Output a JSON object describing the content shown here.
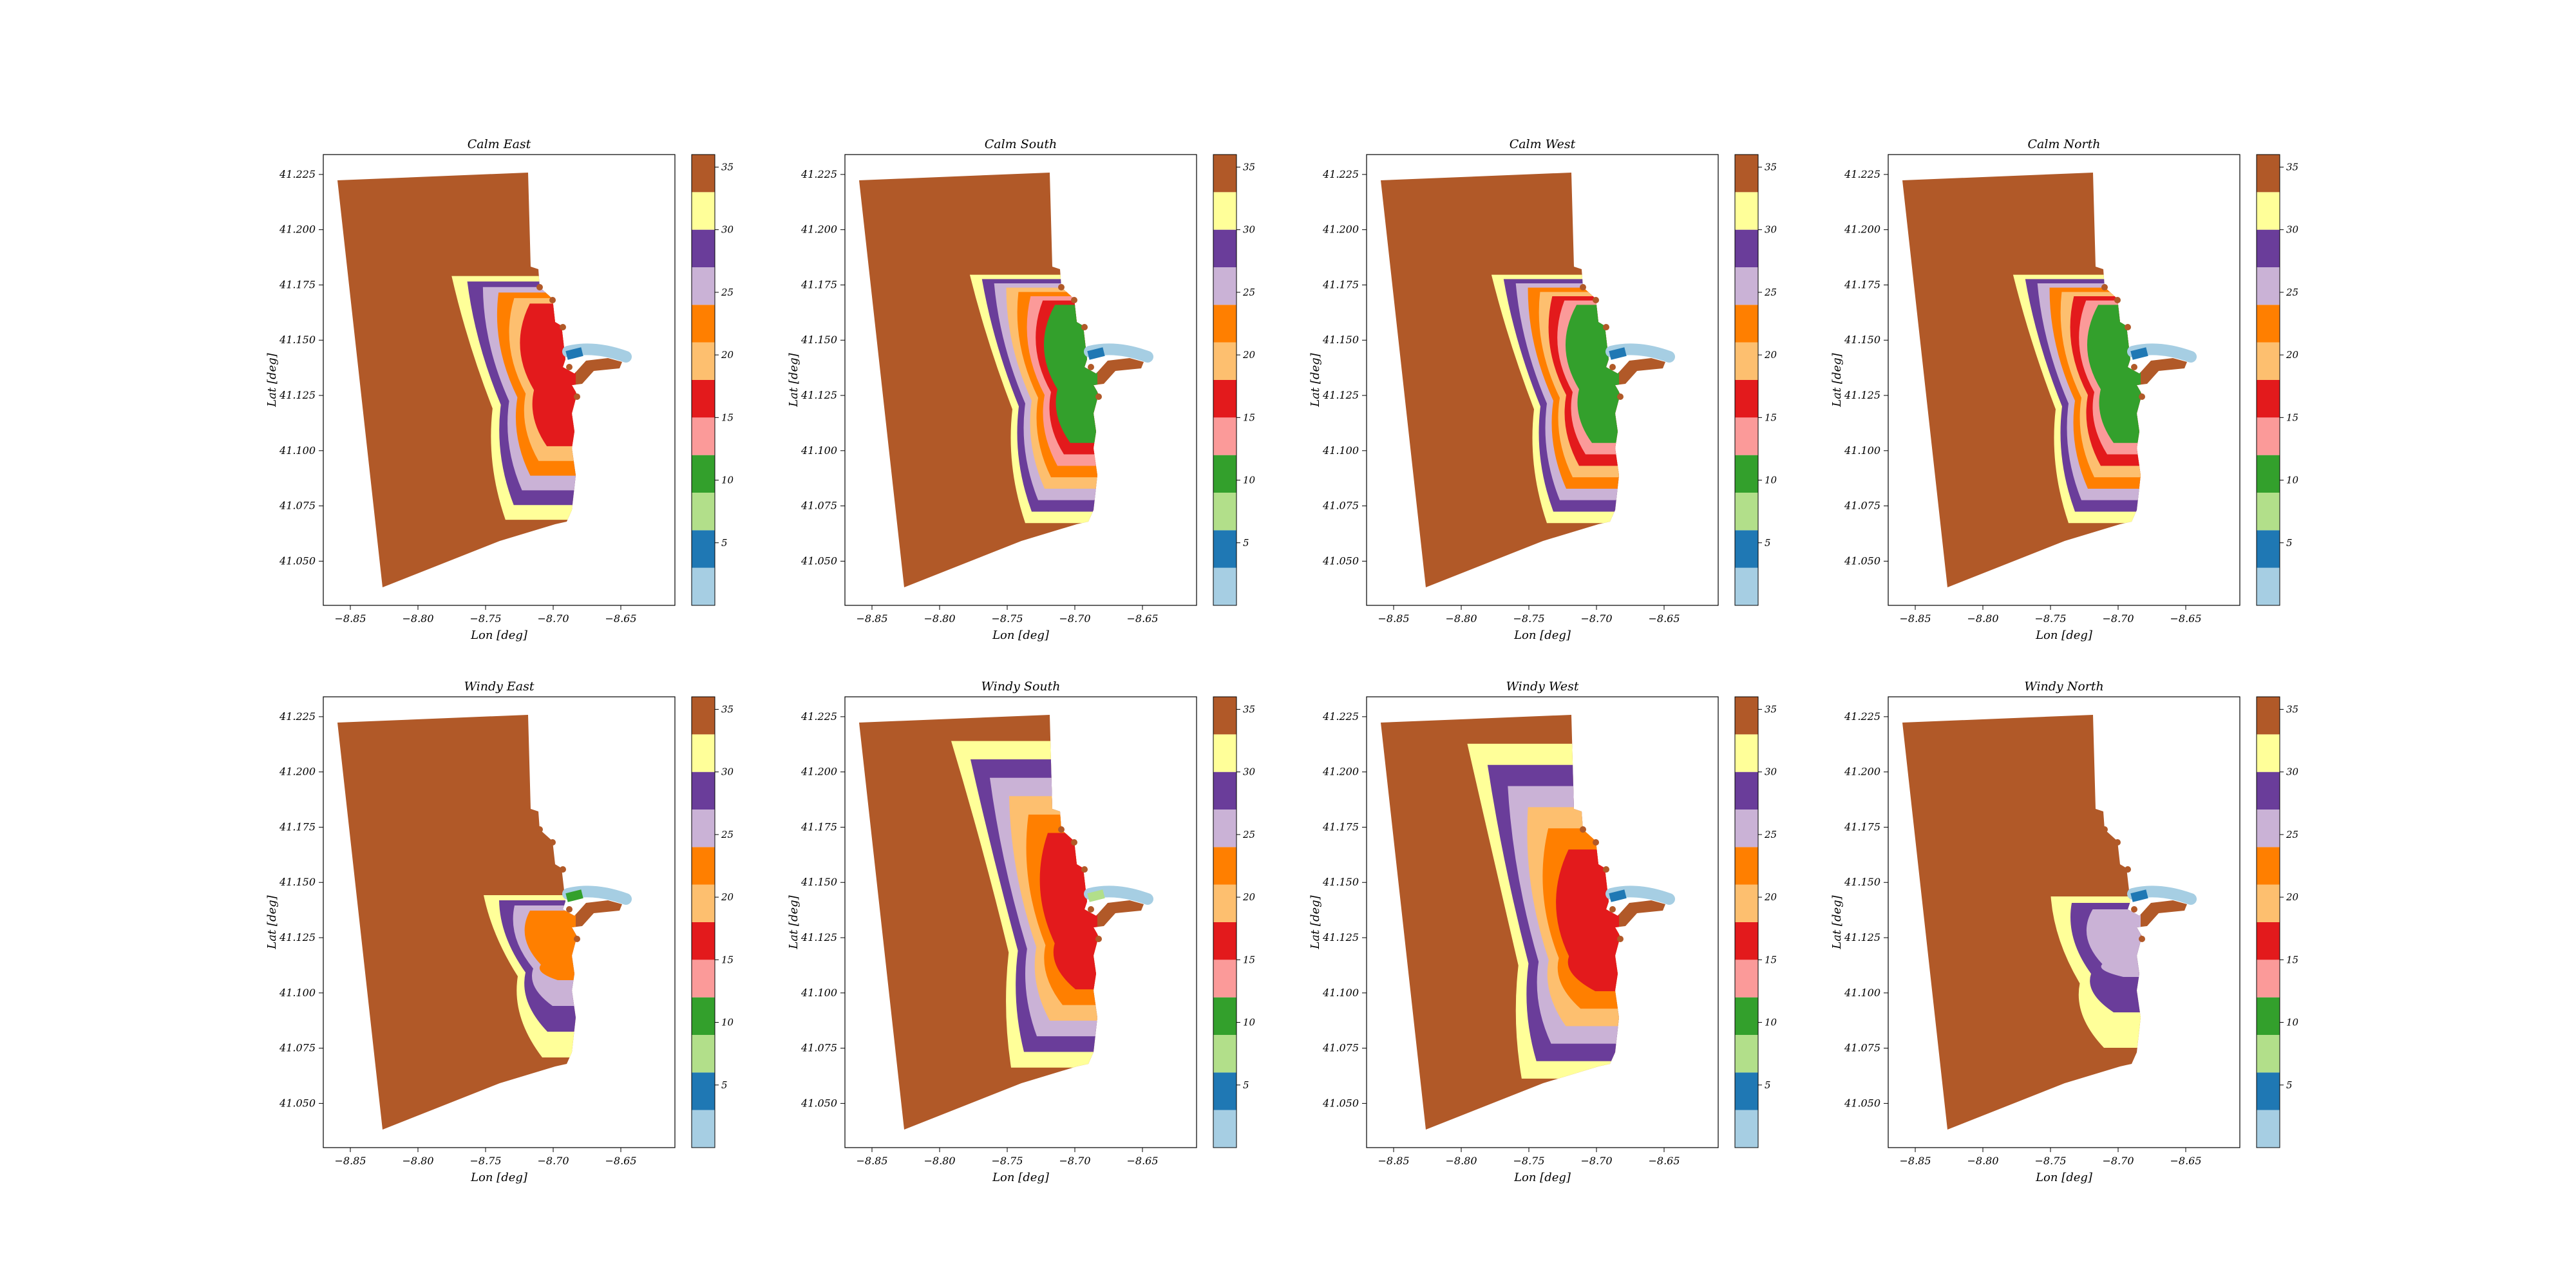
{
  "figure": {
    "xlabel": "Lon [deg]",
    "ylabel": "Lat [deg]",
    "x_ticks": [
      "−8.85",
      "−8.80",
      "−8.75",
      "−8.70",
      "−8.65"
    ],
    "y_ticks": [
      "41.050",
      "41.075",
      "41.100",
      "41.125",
      "41.150",
      "41.175",
      "41.200",
      "41.225"
    ]
  },
  "colorbar": {
    "tick_labels": [
      "5",
      "10",
      "15",
      "20",
      "25",
      "30",
      "35"
    ],
    "colors": [
      "#a6cee3",
      "#1f78b4",
      "#b2df8a",
      "#33a02c",
      "#fb9a99",
      "#e31a1c",
      "#fdbf6f",
      "#ff7f00",
      "#cab2d6",
      "#6a3d9a",
      "#ffff99",
      "#b15928"
    ]
  },
  "chart_data": [
    {
      "type": "heatmap",
      "title": "Calm East",
      "xlim": [
        -8.87,
        -8.61
      ],
      "ylim": [
        41.03,
        41.234
      ],
      "colorbar_range": [
        0,
        36
      ],
      "scenario": "calm",
      "zones": [
        [
          "#ffff99",
          0.12
        ],
        [
          "#6a3d9a",
          0.16
        ],
        [
          "#cab2d6",
          0.24
        ],
        [
          "#ff7f00",
          0.3
        ],
        [
          "#fdbf6f",
          0.6
        ],
        [
          "#e31a1c",
          0.35
        ]
      ],
      "river": [
        "#1f78b4",
        "#a6cee3"
      ]
    },
    {
      "type": "heatmap",
      "title": "Calm South",
      "xlim": [
        -8.87,
        -8.61
      ],
      "ylim": [
        41.03,
        41.234
      ],
      "colorbar_range": [
        0,
        36
      ],
      "scenario": "calm",
      "zones": [
        [
          "#ffff99",
          0.14
        ],
        [
          "#6a3d9a",
          0.22
        ],
        [
          "#cab2d6",
          0.3
        ],
        [
          "#fdbf6f",
          0.48
        ],
        [
          "#ff7f00",
          0.38
        ],
        [
          "#fb9a99",
          0.62
        ],
        [
          "#e31a1c",
          0.3
        ],
        [
          "#33a02c",
          0.4
        ]
      ],
      "river": [
        "#1f78b4",
        "#a6cee3"
      ]
    },
    {
      "type": "heatmap",
      "title": "Calm West",
      "xlim": [
        -8.87,
        -8.61
      ],
      "ylim": [
        41.03,
        41.234
      ],
      "colorbar_range": [
        0,
        36
      ],
      "scenario": "calm",
      "zones": [
        [
          "#ffff99",
          0.13
        ],
        [
          "#6a3d9a",
          0.18
        ],
        [
          "#cab2d6",
          0.28
        ],
        [
          "#ff7f00",
          0.5
        ],
        [
          "#fdbf6f",
          0.4
        ],
        [
          "#e31a1c",
          0.48
        ],
        [
          "#fb9a99",
          0.55
        ],
        [
          "#33a02c",
          0.2
        ]
      ],
      "river": [
        "#1f78b4",
        "#a6cee3"
      ]
    },
    {
      "type": "heatmap",
      "title": "Calm North",
      "xlim": [
        -8.87,
        -8.61
      ],
      "ylim": [
        41.03,
        41.234
      ],
      "colorbar_range": [
        0,
        36
      ],
      "scenario": "calm",
      "zones": [
        [
          "#ffff99",
          0.13
        ],
        [
          "#6a3d9a",
          0.18
        ],
        [
          "#cab2d6",
          0.26
        ],
        [
          "#ff7f00",
          0.48
        ],
        [
          "#fdbf6f",
          0.4
        ],
        [
          "#e31a1c",
          0.52
        ],
        [
          "#fb9a99",
          0.45
        ],
        [
          "#33a02c",
          0.25
        ]
      ],
      "river": [
        "#1f78b4",
        "#a6cee3"
      ]
    },
    {
      "type": "heatmap",
      "title": "Windy East",
      "xlim": [
        -8.87,
        -8.61
      ],
      "ylim": [
        41.03,
        41.234
      ],
      "colorbar_range": [
        0,
        36
      ],
      "scenario": "windy-east",
      "zones": [
        [
          "#ffff99",
          0.1
        ],
        [
          "#6a3d9a",
          0.22
        ],
        [
          "#cab2d6",
          0.5
        ],
        [
          "#ff7f00",
          0.45
        ]
      ],
      "river": [
        "#33a02c",
        "#a6cee3"
      ]
    },
    {
      "type": "heatmap",
      "title": "Windy South",
      "xlim": [
        -8.87,
        -8.61
      ],
      "ylim": [
        41.03,
        41.234
      ],
      "colorbar_range": [
        0,
        36
      ],
      "scenario": "windy-south",
      "zones": [
        [
          "#ffff99",
          0.08
        ],
        [
          "#6a3d9a",
          0.22
        ],
        [
          "#cab2d6",
          0.35
        ],
        [
          "#fdbf6f",
          0.48
        ],
        [
          "#ff7f00",
          0.45
        ],
        [
          "#e31a1c",
          0.5
        ]
      ],
      "river": [
        "#b2df8a",
        "#a6cee3"
      ]
    },
    {
      "type": "heatmap",
      "title": "Windy West",
      "xlim": [
        -8.87,
        -8.61
      ],
      "ylim": [
        41.03,
        41.234
      ],
      "colorbar_range": [
        0,
        36
      ],
      "scenario": "windy-west",
      "zones": [
        [
          "#ffff99",
          0.08
        ],
        [
          "#6a3d9a",
          0.2
        ],
        [
          "#cab2d6",
          0.4
        ],
        [
          "#fdbf6f",
          0.5
        ],
        [
          "#ff7f00",
          0.4
        ],
        [
          "#e31a1c",
          0.5
        ]
      ],
      "river": [
        "#1f78b4",
        "#a6cee3"
      ]
    },
    {
      "type": "heatmap",
      "title": "Windy North",
      "xlim": [
        -8.87,
        -8.61
      ],
      "ylim": [
        41.03,
        41.234
      ],
      "colorbar_range": [
        0,
        36
      ],
      "scenario": "windy-north",
      "zones": [
        [
          "#ffff99",
          0.1
        ],
        [
          "#6a3d9a",
          0.3
        ],
        [
          "#cab2d6",
          0.55
        ]
      ],
      "river": [
        "#1f78b4",
        "#a6cee3"
      ]
    }
  ]
}
